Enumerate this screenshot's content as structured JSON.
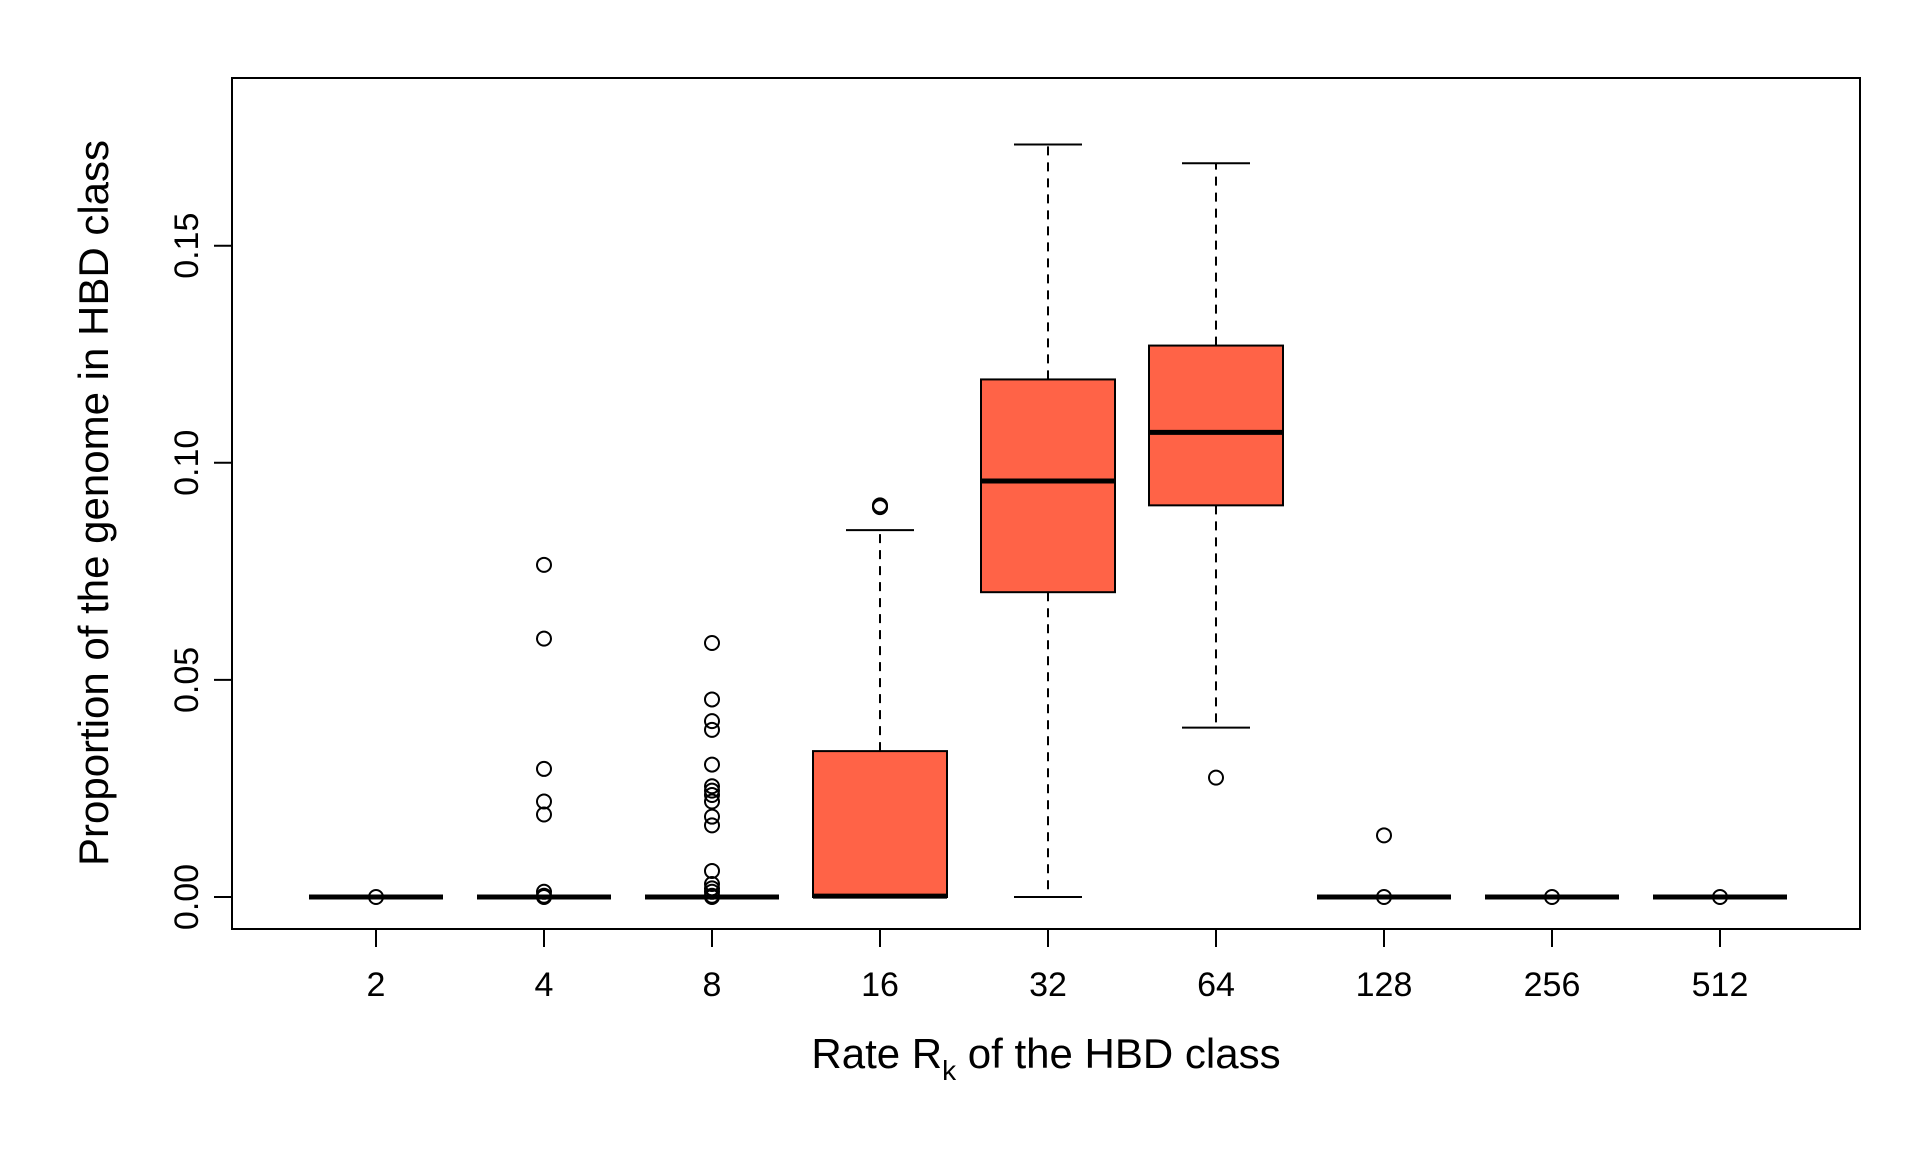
{
  "chart_data": {
    "type": "box",
    "title": "",
    "xlabel_main": "Rate R",
    "xlabel_sub": "k",
    "xlabel_tail": " of the HBD class",
    "ylabel": "Proportion of the genome in HBD class",
    "categories": [
      "2",
      "4",
      "8",
      "16",
      "32",
      "64",
      "128",
      "256",
      "512"
    ],
    "ylim": [
      -0.007,
      0.189
    ],
    "yticks": [
      0.0,
      0.05,
      0.1,
      0.15
    ],
    "ytick_labels": [
      "0.00",
      "0.05",
      "0.10",
      "0.15"
    ],
    "box_color": "#FF6347",
    "boxes": [
      {
        "category": "2",
        "min": 0,
        "q1": 0,
        "median": 0,
        "q3": 0,
        "max": 0,
        "outliers": [
          0.0
        ]
      },
      {
        "category": "4",
        "min": 0,
        "q1": 0,
        "median": 0,
        "q3": 0,
        "max": 0,
        "outliers": [
          0.0765,
          0.0595,
          0.0295,
          0.022,
          0.019,
          0.0012,
          0.0003,
          0.0
        ]
      },
      {
        "category": "8",
        "min": 0,
        "q1": 0,
        "median": 0,
        "q3": 0,
        "max": 0,
        "outliers": [
          0.0585,
          0.0455,
          0.0405,
          0.0385,
          0.0305,
          0.0255,
          0.0245,
          0.0235,
          0.022,
          0.0185,
          0.0165,
          0.006,
          0.003,
          0.002,
          0.0012,
          0.0003,
          0.0
        ]
      },
      {
        "category": "16",
        "min": 0,
        "q1": 0,
        "median": 0.0002,
        "q3": 0.0336,
        "max": 0.0845,
        "outliers": [
          0.0902,
          0.0898
        ]
      },
      {
        "category": "32",
        "min": 0,
        "q1": 0.0702,
        "median": 0.0958,
        "q3": 0.1192,
        "max": 0.1733,
        "outliers": []
      },
      {
        "category": "64",
        "min": 0.039,
        "q1": 0.0902,
        "median": 0.107,
        "q3": 0.127,
        "max": 0.169,
        "outliers": [
          0.0275
        ]
      },
      {
        "category": "128",
        "min": 0,
        "q1": 0,
        "median": 0,
        "q3": 0,
        "max": 0,
        "outliers": [
          0.0142,
          0.0
        ]
      },
      {
        "category": "256",
        "min": 0,
        "q1": 0,
        "median": 0,
        "q3": 0,
        "max": 0,
        "outliers": [
          0.0
        ]
      },
      {
        "category": "512",
        "min": 0,
        "q1": 0,
        "median": 0,
        "q3": 0,
        "max": 0,
        "outliers": [
          0.0
        ]
      }
    ]
  }
}
